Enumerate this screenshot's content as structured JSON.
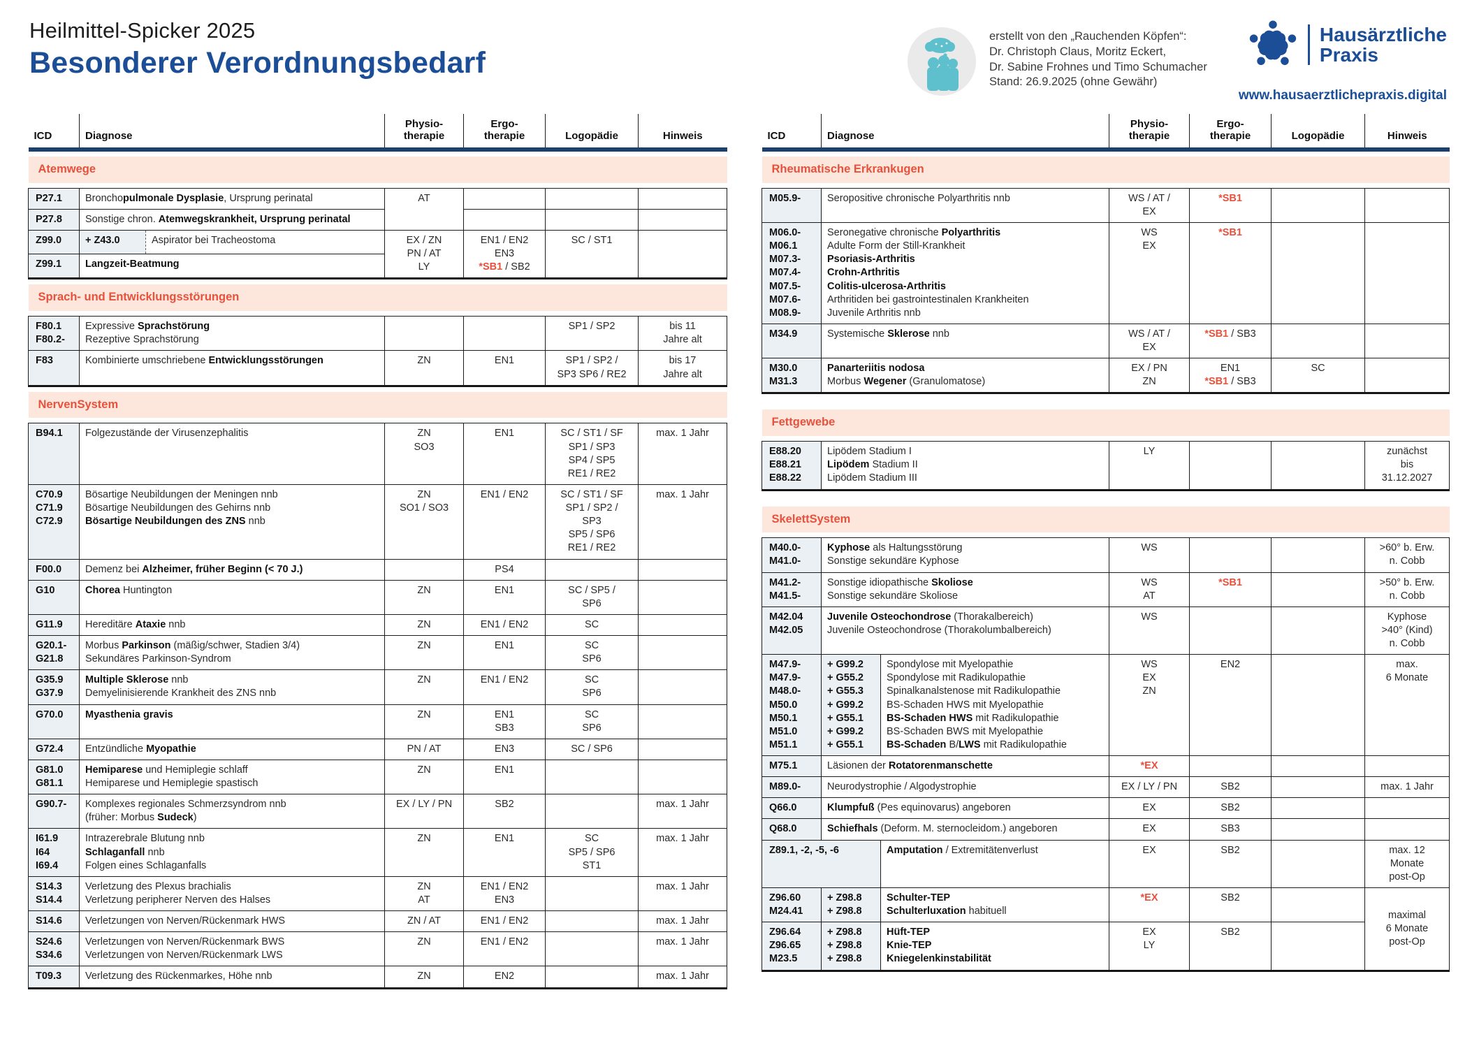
{
  "header": {
    "suptitle": "Heilmittel-Spicker 2025",
    "title": "Besonderer Verordnungsbedarf",
    "attribution": "erstellt von den „Rauchenden Köpfen“:\nDr. Christoph Claus, Moritz Eckert,\nDr. Sabine Frohnes und Timo Schumacher\nStand: 26.9.2025 (ohne Gewähr)",
    "brand_name": "Hausärztliche\nPraxis",
    "website": "www.hausaerztlichepraxis.digital",
    "icons": {
      "attribution": "rauchende-koepfe-icon",
      "brand": "praxis-logo-icon"
    },
    "colors": {
      "accent_blue": "#1b4e97",
      "navy_rule": "#1c3f6e",
      "accent_red": "#e8513c",
      "section_bg": "#fde7dc",
      "icd_bg": "#eaf0f3",
      "teal": "#5fc0cd"
    }
  },
  "columns": {
    "icd": "ICD",
    "diagnose": "Diagnose",
    "physio": "Physio-\ntherapie",
    "ergo": "Ergo-\ntherapie",
    "logo": "Logopädie",
    "hinweis": "Hinweis"
  },
  "left": {
    "sections": [
      {
        "title": "Atemwege",
        "rows": [
          {
            "icd": "P27.1",
            "diag": "Broncho<b>pulmonale Dysplasie</b>, Ursprung perinatal",
            "physio": "AT"
          },
          {
            "icd": "P27.8",
            "diag": "Sonstige chron. <b>Atemwegskrankheit, Ursprung perinatal</b>"
          },
          {
            "icd": "Z99.0",
            "sub": "+ Z43.0",
            "diag": "Aspirator bei Tracheostoma",
            "physio": "EX / ZN\nPN / AT\nLY",
            "ergo": "EN1 / EN2\nEN3\n<i>*SB1</i> / SB2",
            "logo": "SC / ST1",
            "hinweis": ""
          },
          {
            "icd": "Z99.1",
            "diag": "<b>Langzeit-Beatmung</b>"
          }
        ]
      },
      {
        "title": "Sprach- und Entwicklungsstörungen",
        "rows": [
          {
            "icd": "F80.1\nF80.2-",
            "diag": "Expressive <b>Sprachstörung</b>\nRezeptive Sprachstörung",
            "logo": "SP1 / SP2",
            "hinweis": "bis 11\nJahre alt"
          },
          {
            "icd": "F83",
            "diag": "Kombinierte umschriebene <b>Entwicklungsstörungen</b>",
            "physio": "ZN",
            "ergo": "EN1",
            "logo": "SP1 / SP2 /\nSP3 SP6 / RE2",
            "hinweis": "bis 17\nJahre alt"
          }
        ]
      },
      {
        "title": "NervenSystem",
        "rows": [
          {
            "icd": "B94.1",
            "diag": "Folgezustände der Virusenzephalitis",
            "physio": "ZN\nSO3",
            "ergo": "EN1",
            "logo": "SC / ST1 / SF\nSP1 / SP3\nSP4 / SP5\nRE1 / RE2",
            "hinweis": "max. 1 Jahr"
          },
          {
            "icd": "C70.9\nC71.9\nC72.9",
            "diag": "Bösartige Neubildungen der Meningen nnb\nBösartige Neubildungen des Gehirns nnb\n<b>Bösartige Neubildungen des ZNS</b> nnb",
            "physio": "ZN\nSO1 / SO3",
            "ergo": "EN1 / EN2",
            "logo": "SC / ST1 / SF\nSP1 / SP2 /\nSP3\nSP5 / SP6\nRE1 / RE2",
            "hinweis": "max. 1 Jahr"
          },
          {
            "icd": "F00.0",
            "diag": "Demenz bei <b>Alzheimer, früher Beginn (&lt; 70 J.)</b>",
            "ergo": "PS4"
          },
          {
            "icd": "G10",
            "diag": "<b>Chorea</b> Huntington",
            "physio": "ZN",
            "ergo": "EN1",
            "logo": "SC / SP5 /\nSP6"
          },
          {
            "icd": "G11.9",
            "diag": "Hereditäre <b>Ataxie</b> nnb",
            "physio": "ZN",
            "ergo": "EN1 / EN2",
            "logo": "SC"
          },
          {
            "icd": "G20.1-\nG21.8",
            "diag": "Morbus <b>Parkinson</b> (mäßig/schwer, Stadien 3/4)\nSekundäres Parkinson-Syndrom",
            "physio": "ZN",
            "ergo": "EN1",
            "logo": "SC\nSP6"
          },
          {
            "icd": "G35.9\nG37.9",
            "diag": "<b>Multiple Sklerose</b> nnb\nDemyelinisierende Krankheit des ZNS nnb",
            "physio": "ZN",
            "ergo": "EN1 / EN2",
            "logo": "SC\nSP6"
          },
          {
            "icd": "G70.0",
            "diag": "<b>Myasthenia gravis</b>",
            "physio": "ZN",
            "ergo": "EN1\nSB3",
            "logo": "SC\nSP6"
          },
          {
            "icd": "G72.4",
            "diag": "Entzündliche <b>Myopathie</b>",
            "physio": "PN / AT",
            "ergo": "EN3",
            "logo": "SC / SP6"
          },
          {
            "icd": "G81.0\nG81.1",
            "diag": "<b>Hemiparese</b> und Hemiplegie schlaff\nHemiparese und Hemiplegie spastisch",
            "physio": "ZN",
            "ergo": "EN1"
          },
          {
            "icd": "G90.7-",
            "diag": "Komplexes regionales Schmerzsyndrom nnb\n(früher: Morbus <b>Sudeck</b>)",
            "physio": "EX / LY / PN",
            "ergo": "SB2",
            "hinweis": "max. 1 Jahr"
          },
          {
            "icd": "I61.9\nI64\nI69.4",
            "diag": "Intrazerebrale Blutung nnb\n<b>Schlaganfall</b> nnb\nFolgen eines Schlaganfalls",
            "physio": "ZN",
            "ergo": "EN1",
            "logo": "SC\nSP5 / SP6\nST1",
            "hinweis": "max. 1 Jahr"
          },
          {
            "icd": "S14.3\nS14.4",
            "diag": "Verletzung des Plexus brachialis\nVerletzung peripherer Nerven des Halses",
            "physio": "ZN\nAT",
            "ergo": "EN1 / EN2\nEN3",
            "hinweis": "max. 1 Jahr"
          },
          {
            "icd": "S14.6",
            "diag": "Verletzungen von Nerven/Rückenmark HWS",
            "physio": "ZN / AT",
            "ergo": "EN1 / EN2",
            "hinweis": "max. 1 Jahr"
          },
          {
            "icd": "S24.6\nS34.6",
            "diag": "Verletzungen von Nerven/Rückenmark BWS\nVerletzungen von Nerven/Rückenmark LWS",
            "physio": "ZN",
            "ergo": "EN1 / EN2",
            "hinweis": "max. 1 Jahr"
          },
          {
            "icd": "T09.3",
            "diag": "Verletzung des Rückenmarkes, Höhe nnb",
            "physio": "ZN",
            "ergo": "EN2",
            "hinweis": "max. 1 Jahr"
          }
        ]
      }
    ]
  },
  "right": {
    "sections": [
      {
        "title": "Rheumatische Erkrankugen",
        "rows": [
          {
            "icd": "M05.9-",
            "diag": "Seropositive chronische Polyarthritis nnb",
            "physio": "WS / AT /\nEX",
            "ergo": "<i>*SB1</i>"
          },
          {
            "icd": "M06.0-\nM06.1\nM07.3-\nM07.4-\nM07.5-\nM07.6-\nM08.9-",
            "diag": "Seronegative chronische <b>Polyarthritis</b>\nAdulte Form der Still-Krankheit\n<b>Psoriasis-Arthritis</b>\n<b>Crohn-Arthritis</b>\n<b>Colitis-ulcerosa-Arthritis</b>\nArthritiden bei gastrointestinalen Krankheiten\nJuvenile Arthritis nnb",
            "physio": "WS\nEX",
            "ergo": "<i>*SB1</i>"
          },
          {
            "icd": "M34.9",
            "diag": "Systemische <b>Sklerose</b> nnb",
            "physio": "WS / AT /\nEX",
            "ergo": "<i>*SB1</i> / SB3"
          },
          {
            "icd": "M30.0\nM31.3",
            "diag": "<b>Panarteriitis nodosa</b>\nMorbus <b>Wegener</b> (Granulomatose)",
            "physio": "EX / PN\nZN",
            "ergo": "EN1\n<i>*SB1</i> / SB3",
            "logo": "SC"
          }
        ]
      },
      {
        "title": "Fettgewebe",
        "rows": [
          {
            "icd": "E88.20\nE88.21\nE88.22",
            "diag": "Lipödem Stadium I\n<b>Lipödem</b> Stadium II\nLipödem Stadium III",
            "physio": "LY",
            "hinweis": "zunächst\nbis\n31.12.2027"
          }
        ]
      },
      {
        "title": "SkelettSystem",
        "rows": [
          {
            "icd": "M40.0-\nM41.0-",
            "diag": "<b>Kyphose</b> als Haltungsstörung\nSonstige sekundäre Kyphose",
            "physio": "WS",
            "hinweis": ">60° b. Erw.\nn. Cobb"
          },
          {
            "icd": "M41.2-\nM41.5-",
            "diag": "Sonstige idiopathische <b>Skoliose</b>\nSonstige sekundäre Skoliose",
            "physio": "WS\nAT",
            "ergo": "<i>*SB1</i>",
            "hinweis": ">50° b. Erw.\nn. Cobb"
          },
          {
            "icd": "M42.04\nM42.05",
            "diag": "<b>Juvenile Osteochondrose</b> (Thorakalbereich)\nJuvenile Osteochondrose (Thorakolumbalbereich)",
            "physio": "WS",
            "hinweis": "Kyphose\n>40° (Kind)\nn. Cobb"
          },
          {
            "icd": "M47.9-\nM47.9-\nM48.0-\nM50.0\nM50.1\nM51.0\nM51.1",
            "sub": "+ G99.2\n+ G55.2\n+ G55.3\n+ G99.2\n+ G55.1\n+ G99.2\n+ G55.1",
            "diag": "Spondylose mit Myelopathie\nSpondylose mit Radikulopathie\nSpinalkanalstenose mit Radikulopathie\nBS-Schaden HWS mit Myelopathie\n<b>BS-Schaden HWS</b> mit Radikulopathie\nBS-Schaden BWS mit Myelopathie\n<b>BS-Schaden</b> B/<b>LWS</b> mit Radikulopathie",
            "physio": "WS\nEX\nZN",
            "ergo": "EN2",
            "hinweis": "max.\n6 Monate"
          },
          {
            "icd": "M75.1",
            "diag": "Läsionen der <b>Rotatorenmanschette</b>",
            "physio": "<i>*EX</i>"
          },
          {
            "icd": "M89.0-",
            "diag": "Neurodystrophie / Algodystrophie",
            "physio": "EX / LY / PN",
            "ergo": "SB2",
            "hinweis": "max. 1 Jahr"
          },
          {
            "icd": "Q66.0",
            "diag": "<b>Klumpfuß</b> (Pes equinovarus) angeboren",
            "physio": "EX",
            "ergo": "SB2"
          },
          {
            "icd": "Q68.0",
            "diag": "<b>Schiefhals</b> (Deform. M. sternocleidom.) angeboren",
            "physio": "EX",
            "ergo": "SB3"
          },
          {
            "icd": "Z89.1, -2, -5, -6",
            "diag": "<b>Amputation</b> / Extremitätenverlust",
            "physio": "EX",
            "ergo": "SB2",
            "hinweis": "max. 12\nMonate\npost-Op"
          },
          {
            "icd": "Z96.60\nM24.41",
            "sub": "+ Z98.8\n+ Z98.8",
            "diag": "<b>Schulter-TEP</b>\n<b>Schulterluxation</b> habituell",
            "physio": "<i>*EX</i>",
            "ergo": "SB2",
            "hinweis": "maximal\n6 Monate\npost-Op"
          },
          {
            "icd": "Z96.64\nZ96.65\nM23.5",
            "sub": "+ Z98.8\n+ Z98.8\n+ Z98.8",
            "diag": "<b>Hüft-TEP</b>\n<b>Knie-TEP</b>\n<b>Kniegelenkinstabilität</b>",
            "physio": "EX\nLY",
            "ergo": "SB2"
          }
        ]
      }
    ]
  }
}
